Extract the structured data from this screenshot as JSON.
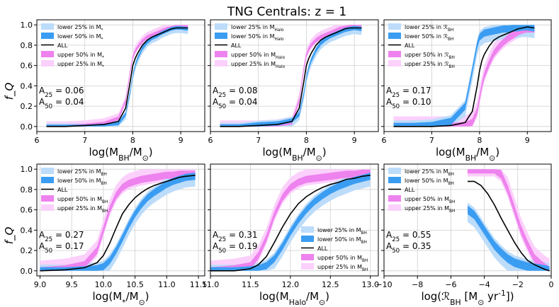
{
  "figure": {
    "title": "TNG Centrals: z = 1",
    "ylabel": "f_Q",
    "colors": {
      "lower25": "#bcdcfa",
      "lower50": "#3b9df2",
      "all": "#000000",
      "upper50": "#ee82ee",
      "upper25": "#fbd0fb",
      "grid": "#cfcfcf",
      "axis": "#000000"
    }
  },
  "chart_data": [
    {
      "type": "line",
      "panel": "top-left",
      "xlabel": "log(M_BH/M_⊙)",
      "xlim": [
        6,
        9.5
      ],
      "ylim": [
        -0.05,
        1.05
      ],
      "xticks": [
        "6",
        "7",
        "8",
        "9"
      ],
      "yticks": [
        "0.0",
        "0.2",
        "0.4",
        "0.6",
        "0.8",
        "1.0"
      ],
      "legend_position": "top-left",
      "legend": [
        "lower 25%  in M_*",
        "lower 50%  in M_*",
        "ALL",
        "upper 50%  in M_*",
        "upper 25%  in M_*"
      ],
      "annotation": [
        "A_25 = 0.06",
        "A_50 = 0.04"
      ],
      "x": [
        6.2,
        6.6,
        7.0,
        7.4,
        7.7,
        7.85,
        7.95,
        8.0,
        8.05,
        8.1,
        8.2,
        8.3,
        8.4,
        8.5,
        8.6,
        8.7,
        8.8,
        8.9,
        9.0,
        9.15
      ],
      "series": [
        {
          "name": "ALL",
          "values": [
            0.0,
            0.0,
            0.01,
            0.02,
            0.05,
            0.18,
            0.45,
            0.6,
            0.67,
            0.72,
            0.8,
            0.85,
            0.88,
            0.9,
            0.92,
            0.94,
            0.96,
            0.97,
            0.97,
            0.97
          ]
        },
        {
          "name": "lower 50%",
          "values": [
            0.0,
            0.0,
            0.0,
            0.01,
            0.03,
            0.12,
            0.35,
            0.5,
            0.6,
            0.67,
            0.77,
            0.83,
            0.87,
            0.89,
            0.92,
            0.94,
            0.96,
            0.97,
            0.97,
            0.96
          ]
        },
        {
          "name": "upper 50%",
          "values": [
            0.0,
            0.0,
            0.01,
            0.03,
            0.08,
            0.25,
            0.55,
            0.68,
            0.74,
            0.78,
            0.84,
            0.88,
            0.9,
            0.92,
            0.94,
            0.96,
            0.97,
            0.98,
            0.98,
            0.98
          ]
        }
      ],
      "band_spread": 0.05
    },
    {
      "type": "line",
      "panel": "top-middle",
      "xlabel": "log(M_BH/M_⊙)",
      "xlim": [
        6,
        9.5
      ],
      "ylim": [
        -0.05,
        1.05
      ],
      "xticks": [
        "6",
        "7",
        "8",
        "9"
      ],
      "legend_position": "top-left",
      "legend": [
        "lower 25%  in M_Halo",
        "lower 50%  in M_Halo",
        "ALL",
        "upper 50%  in M_Halo",
        "upper 25%  in M_Halo"
      ],
      "annotation": [
        "A_25 = 0.08",
        "A_50 = 0.04"
      ],
      "x": [
        6.2,
        6.6,
        7.0,
        7.4,
        7.7,
        7.85,
        7.95,
        8.0,
        8.05,
        8.1,
        8.2,
        8.3,
        8.4,
        8.5,
        8.6,
        8.7,
        8.8,
        8.9,
        9.0,
        9.15
      ],
      "series": [
        {
          "name": "ALL",
          "values": [
            0.0,
            0.0,
            0.01,
            0.02,
            0.05,
            0.18,
            0.45,
            0.6,
            0.67,
            0.72,
            0.8,
            0.85,
            0.88,
            0.9,
            0.92,
            0.94,
            0.96,
            0.97,
            0.97,
            0.97
          ]
        },
        {
          "name": "lower 50%",
          "values": [
            0.0,
            0.0,
            0.02,
            0.03,
            0.06,
            0.12,
            0.33,
            0.48,
            0.58,
            0.65,
            0.75,
            0.82,
            0.86,
            0.89,
            0.91,
            0.93,
            0.95,
            0.96,
            0.97,
            0.96
          ]
        },
        {
          "name": "upper 50%",
          "values": [
            0.0,
            0.0,
            0.0,
            0.01,
            0.04,
            0.26,
            0.57,
            0.7,
            0.76,
            0.8,
            0.85,
            0.88,
            0.9,
            0.92,
            0.94,
            0.96,
            0.97,
            0.98,
            0.98,
            0.98
          ]
        }
      ],
      "band_spread": 0.06
    },
    {
      "type": "line",
      "panel": "top-right",
      "xlabel": "log(M_BH/M_⊙)",
      "xlim": [
        6,
        9.5
      ],
      "ylim": [
        -0.05,
        1.05
      ],
      "xticks": [
        "6",
        "7",
        "8",
        "9"
      ],
      "legend_position": "top-left",
      "legend": [
        "lower 25%  in ℛ_BH",
        "lower 50%  in ℛ_BH",
        "ALL",
        "upper 50%  in ℛ_BH",
        "upper 25%  in ℛ_BH"
      ],
      "annotation": [
        "A_25 = 0.17",
        "A_50 = 0.10"
      ],
      "x": [
        6.2,
        6.6,
        7.0,
        7.4,
        7.7,
        7.85,
        7.95,
        8.0,
        8.05,
        8.1,
        8.2,
        8.3,
        8.4,
        8.5,
        8.6,
        8.7,
        8.8,
        8.9,
        9.0,
        9.15
      ],
      "series": [
        {
          "name": "ALL",
          "values": [
            0.0,
            0.0,
            0.0,
            0.01,
            0.04,
            0.15,
            0.4,
            0.55,
            0.65,
            0.71,
            0.79,
            0.85,
            0.88,
            0.9,
            0.92,
            0.94,
            0.96,
            0.97,
            0.98,
            0.97
          ]
        },
        {
          "name": "lower 50%",
          "values": [
            0.0,
            0.0,
            0.01,
            0.05,
            0.2,
            0.55,
            0.8,
            0.88,
            0.9,
            0.92,
            0.93,
            0.94,
            0.95,
            0.96,
            0.96,
            0.97,
            0.97,
            0.98,
            0.98,
            0.97
          ]
        },
        {
          "name": "upper 50%",
          "values": [
            0.0,
            0.0,
            0.0,
            0.0,
            0.01,
            0.04,
            0.15,
            0.28,
            0.4,
            0.5,
            0.62,
            0.72,
            0.78,
            0.83,
            0.87,
            0.9,
            0.93,
            0.95,
            0.96,
            0.96
          ]
        }
      ],
      "band_spread": 0.1
    },
    {
      "type": "line",
      "panel": "bottom-left",
      "xlabel": "log(M_*/M_⊙)",
      "xlim": [
        8.95,
        11.6
      ],
      "ylim": [
        -0.05,
        1.05
      ],
      "xticks": [
        "9.0",
        "9.5",
        "10.0",
        "10.5",
        "11.0",
        "11.5"
      ],
      "yticks": [
        "0.0",
        "0.2",
        "0.4",
        "0.6",
        "0.8",
        "1.0"
      ],
      "legend_position": "top-left",
      "legend": [
        "lower 25%  in M_BH",
        "lower 50%  in M_BH",
        "ALL",
        "upper 50%  in M_BH",
        "upper 25%  in M_BH"
      ],
      "annotation": [
        "A_25 = 0.27",
        "A_50 = 0.17"
      ],
      "x": [
        9.0,
        9.4,
        9.7,
        9.9,
        10.0,
        10.1,
        10.2,
        10.3,
        10.4,
        10.5,
        10.6,
        10.7,
        10.8,
        10.9,
        11.0,
        11.1,
        11.2,
        11.3,
        11.45
      ],
      "series": [
        {
          "name": "ALL",
          "values": [
            0.0,
            0.01,
            0.03,
            0.08,
            0.15,
            0.27,
            0.42,
            0.56,
            0.65,
            0.72,
            0.77,
            0.81,
            0.84,
            0.86,
            0.88,
            0.9,
            0.92,
            0.93,
            0.94
          ]
        },
        {
          "name": "lower 50%",
          "values": [
            0.0,
            0.0,
            0.01,
            0.02,
            0.04,
            0.1,
            0.2,
            0.32,
            0.45,
            0.56,
            0.65,
            0.72,
            0.77,
            0.81,
            0.85,
            0.88,
            0.9,
            0.92,
            0.93
          ]
        },
        {
          "name": "upper 50%",
          "values": [
            0.0,
            0.02,
            0.06,
            0.2,
            0.4,
            0.6,
            0.74,
            0.82,
            0.86,
            0.88,
            0.9,
            0.91,
            0.92,
            0.93,
            0.94,
            0.94,
            0.95,
            0.95,
            0.95
          ]
        }
      ],
      "band_spread": 0.1
    },
    {
      "type": "line",
      "panel": "bottom-middle",
      "xlabel": "log(M_Halo/M_⊙)",
      "xlim": [
        11.0,
        13.1
      ],
      "ylim": [
        -0.05,
        1.05
      ],
      "xticks": [
        "11.0",
        "11.5",
        "12.0",
        "12.5",
        "13.0"
      ],
      "legend_position": "lower-right",
      "legend": [
        "lower 25%  in M_BH",
        "lower 50%  in M_BH",
        "ALL",
        "upper 50%  in M_BH",
        "upper 25%  in M_BH"
      ],
      "annotation": [
        "A_25 = 0.31",
        "A_50 = 0.19"
      ],
      "x": [
        11.0,
        11.3,
        11.5,
        11.6,
        11.7,
        11.8,
        11.9,
        12.0,
        12.1,
        12.2,
        12.3,
        12.4,
        12.5,
        12.6,
        12.7,
        12.8,
        12.9,
        13.0
      ],
      "series": [
        {
          "name": "ALL",
          "values": [
            0.0,
            0.0,
            0.02,
            0.06,
            0.14,
            0.28,
            0.43,
            0.56,
            0.66,
            0.73,
            0.78,
            0.82,
            0.85,
            0.87,
            0.9,
            0.91,
            0.93,
            0.94
          ]
        },
        {
          "name": "lower 50%",
          "values": [
            0.0,
            0.0,
            0.01,
            0.02,
            0.05,
            0.12,
            0.24,
            0.38,
            0.5,
            0.6,
            0.68,
            0.74,
            0.79,
            0.83,
            0.86,
            0.89,
            0.91,
            0.93
          ]
        },
        {
          "name": "upper 50%",
          "values": [
            0.0,
            0.02,
            0.05,
            0.15,
            0.32,
            0.55,
            0.72,
            0.82,
            0.87,
            0.9,
            0.91,
            0.92,
            0.93,
            0.94,
            0.95,
            0.95,
            0.96,
            0.96
          ]
        }
      ],
      "band_spread": 0.1
    },
    {
      "type": "line",
      "panel": "bottom-right",
      "xlabel": "log(ℛ_BH [M_⊙ yr^-1])",
      "xlim": [
        -10,
        0
      ],
      "ylim": [
        -0.05,
        1.05
      ],
      "xticks": [
        "−10",
        "−8",
        "−6",
        "−4",
        "−2",
        "0"
      ],
      "legend_position": "top-left",
      "legend": [
        "lower 25%  in M_BH",
        "lower 50%  in M_BH",
        "ALL",
        "upper 50%  in M_BH",
        "upper 25%  in M_BH"
      ],
      "annotation": [
        "A_25 = 0.55",
        "A_50 = 0.35"
      ],
      "x": [
        -5.0,
        -4.6,
        -4.2,
        -3.8,
        -3.4,
        -3.0,
        -2.6,
        -2.2,
        -1.8,
        -1.4,
        -1.0,
        -0.6,
        -0.3,
        -0.1
      ],
      "series": [
        {
          "name": "ALL",
          "values": [
            0.88,
            0.88,
            0.84,
            0.76,
            0.65,
            0.52,
            0.4,
            0.28,
            0.18,
            0.1,
            0.06,
            0.03,
            0.01,
            0.0
          ]
        },
        {
          "name": "lower 50%",
          "values": [
            0.6,
            0.55,
            0.45,
            0.35,
            0.25,
            0.18,
            0.12,
            0.08,
            0.06,
            0.04,
            0.03,
            0.02,
            0.01,
            0.0
          ]
        },
        {
          "name": "upper 50%",
          "values": [
            1.0,
            1.0,
            1.0,
            1.0,
            1.0,
            0.95,
            0.8,
            0.6,
            0.4,
            0.25,
            0.12,
            0.06,
            0.02,
            0.0
          ]
        }
      ],
      "band_spread": 0.12
    }
  ]
}
